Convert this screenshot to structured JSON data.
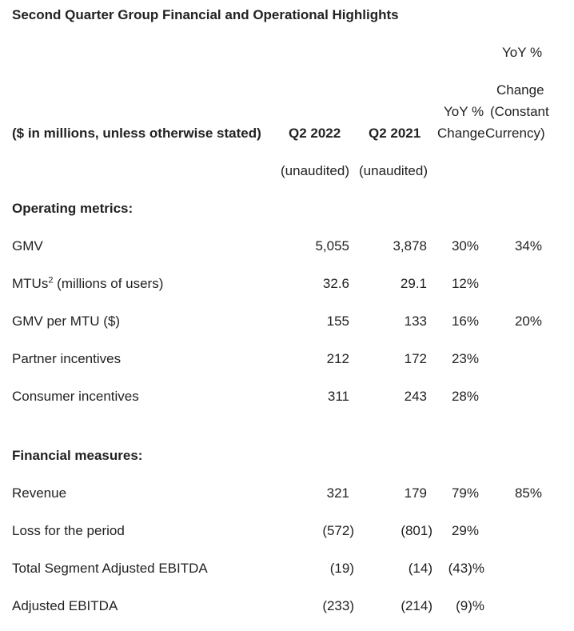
{
  "title": "Second Quarter Group Financial and Operational Highlights",
  "header": {
    "col_label": "($ in millions, unless otherwise stated)",
    "q2_2022": "Q2 2022",
    "q2_2021": "Q2 2021",
    "yoy_line1": "YoY %",
    "yoy_line2": "Change",
    "yoycc_line1": "YoY %",
    "yoycc_line2": "Change",
    "yoycc_line3": "(Constant",
    "yoycc_line4": "Currency)",
    "unaudited_2022": "(unaudited)",
    "unaudited_2021": "(unaudited)"
  },
  "sections": {
    "operating": "Operating metrics:",
    "financial": "Financial measures:"
  },
  "rows": {
    "gmv": {
      "label": "GMV",
      "q2_2022": "5,055",
      "q2_2021": "3,878",
      "yoy": "30%",
      "yoycc": "34%"
    },
    "mtus": {
      "label": "MTUs",
      "sup": "2",
      "label_suffix": " (millions of users)",
      "q2_2022": "32.6",
      "q2_2021": "29.1",
      "yoy": "12%",
      "yoycc": ""
    },
    "gmv_per_mtu": {
      "label": "GMV per MTU ($)",
      "q2_2022": "155",
      "q2_2021": "133",
      "yoy": "16%",
      "yoycc": "20%"
    },
    "partner": {
      "label": "Partner incentives",
      "q2_2022": "212",
      "q2_2021": "172",
      "yoy": "23%",
      "yoycc": ""
    },
    "consumer": {
      "label": "Consumer incentives",
      "q2_2022": "311",
      "q2_2021": "243",
      "yoy": "28%",
      "yoycc": ""
    },
    "revenue": {
      "label": "Revenue",
      "q2_2022": "321",
      "q2_2021": "179",
      "yoy": "79%",
      "yoycc": "85%"
    },
    "loss": {
      "label": "Loss for the period",
      "q2_2022": "(572)",
      "q2_2021": "(801)",
      "yoy": "29%",
      "yoycc": ""
    },
    "segment": {
      "label": "Total Segment Adjusted EBITDA",
      "q2_2022": "(19)",
      "q2_2021": "(14)",
      "yoy": "(43)%",
      "yoycc": ""
    },
    "adj_ebitda": {
      "label": "Adjusted EBITDA",
      "q2_2022": "(233)",
      "q2_2021": "(214)",
      "yoy": "(9)%",
      "yoycc": ""
    }
  }
}
